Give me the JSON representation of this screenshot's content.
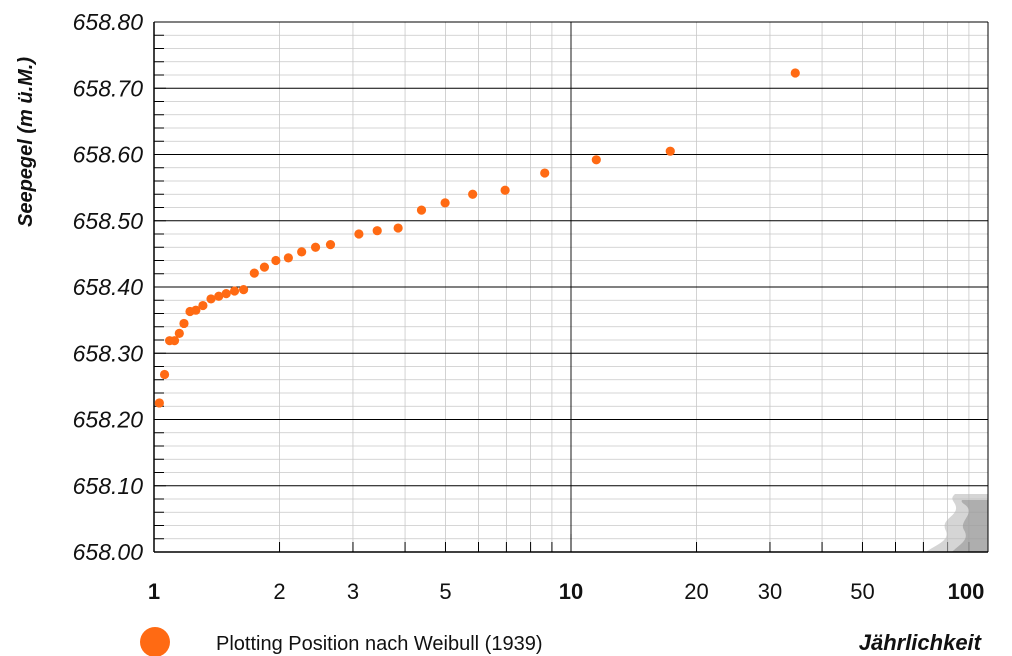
{
  "chart_data": {
    "type": "scatter",
    "title": "",
    "xlabel": "Jährlichkeit",
    "ylabel": "Seepegel (m ü.M.)",
    "x_scale": "log",
    "xlim": [
      1,
      100
    ],
    "ylim": [
      658.0,
      658.8
    ],
    "grid": true,
    "x_ticks": [
      {
        "value": 1,
        "label": "1",
        "bold": true
      },
      {
        "value": 2,
        "label": "2",
        "bold": false
      },
      {
        "value": 3,
        "label": "3",
        "bold": false
      },
      {
        "value": 5,
        "label": "5",
        "bold": false
      },
      {
        "value": 10,
        "label": "10",
        "bold": true
      },
      {
        "value": 20,
        "label": "20",
        "bold": false
      },
      {
        "value": 30,
        "label": "30",
        "bold": false
      },
      {
        "value": 50,
        "label": "50",
        "bold": false
      },
      {
        "value": 100,
        "label": "100",
        "bold": true
      }
    ],
    "y_ticks": [
      {
        "value": 658.0,
        "label": "658.00"
      },
      {
        "value": 658.1,
        "label": "658.10"
      },
      {
        "value": 658.2,
        "label": "658.20"
      },
      {
        "value": 658.3,
        "label": "658.30"
      },
      {
        "value": 658.4,
        "label": "658.40"
      },
      {
        "value": 658.5,
        "label": "658.50"
      },
      {
        "value": 658.6,
        "label": "658.60"
      },
      {
        "value": 658.7,
        "label": "658.70"
      },
      {
        "value": 658.8,
        "label": "658.80"
      }
    ],
    "legend_position": "bottom-left",
    "series": [
      {
        "name": "Plotting Position nach Weibull (1939)",
        "color": "#ff6a13",
        "points": [
          {
            "x": 1.03,
            "y": 658.225
          },
          {
            "x": 1.06,
            "y": 658.268
          },
          {
            "x": 1.09,
            "y": 658.319
          },
          {
            "x": 1.12,
            "y": 658.319
          },
          {
            "x": 1.15,
            "y": 658.33
          },
          {
            "x": 1.18,
            "y": 658.345
          },
          {
            "x": 1.22,
            "y": 658.363
          },
          {
            "x": 1.26,
            "y": 658.365
          },
          {
            "x": 1.31,
            "y": 658.372
          },
          {
            "x": 1.37,
            "y": 658.382
          },
          {
            "x": 1.43,
            "y": 658.386
          },
          {
            "x": 1.49,
            "y": 658.39
          },
          {
            "x": 1.56,
            "y": 658.394
          },
          {
            "x": 1.64,
            "y": 658.396
          },
          {
            "x": 1.74,
            "y": 658.421
          },
          {
            "x": 1.84,
            "y": 658.43
          },
          {
            "x": 1.96,
            "y": 658.44
          },
          {
            "x": 2.1,
            "y": 658.444
          },
          {
            "x": 2.26,
            "y": 658.453
          },
          {
            "x": 2.44,
            "y": 658.46
          },
          {
            "x": 2.65,
            "y": 658.464
          },
          {
            "x": 3.1,
            "y": 658.48
          },
          {
            "x": 3.43,
            "y": 658.485
          },
          {
            "x": 3.85,
            "y": 658.489
          },
          {
            "x": 4.38,
            "y": 658.516
          },
          {
            "x": 4.99,
            "y": 658.527
          },
          {
            "x": 5.81,
            "y": 658.54
          },
          {
            "x": 6.95,
            "y": 658.546
          },
          {
            "x": 8.65,
            "y": 658.572
          },
          {
            "x": 11.5,
            "y": 658.592
          },
          {
            "x": 17.3,
            "y": 658.605
          },
          {
            "x": 34.5,
            "y": 658.723
          }
        ]
      }
    ]
  },
  "colors": {
    "point": "#ff6a13",
    "major_grid": "#000000",
    "minor_grid": "#c8c8c8",
    "axis": "#000000"
  }
}
